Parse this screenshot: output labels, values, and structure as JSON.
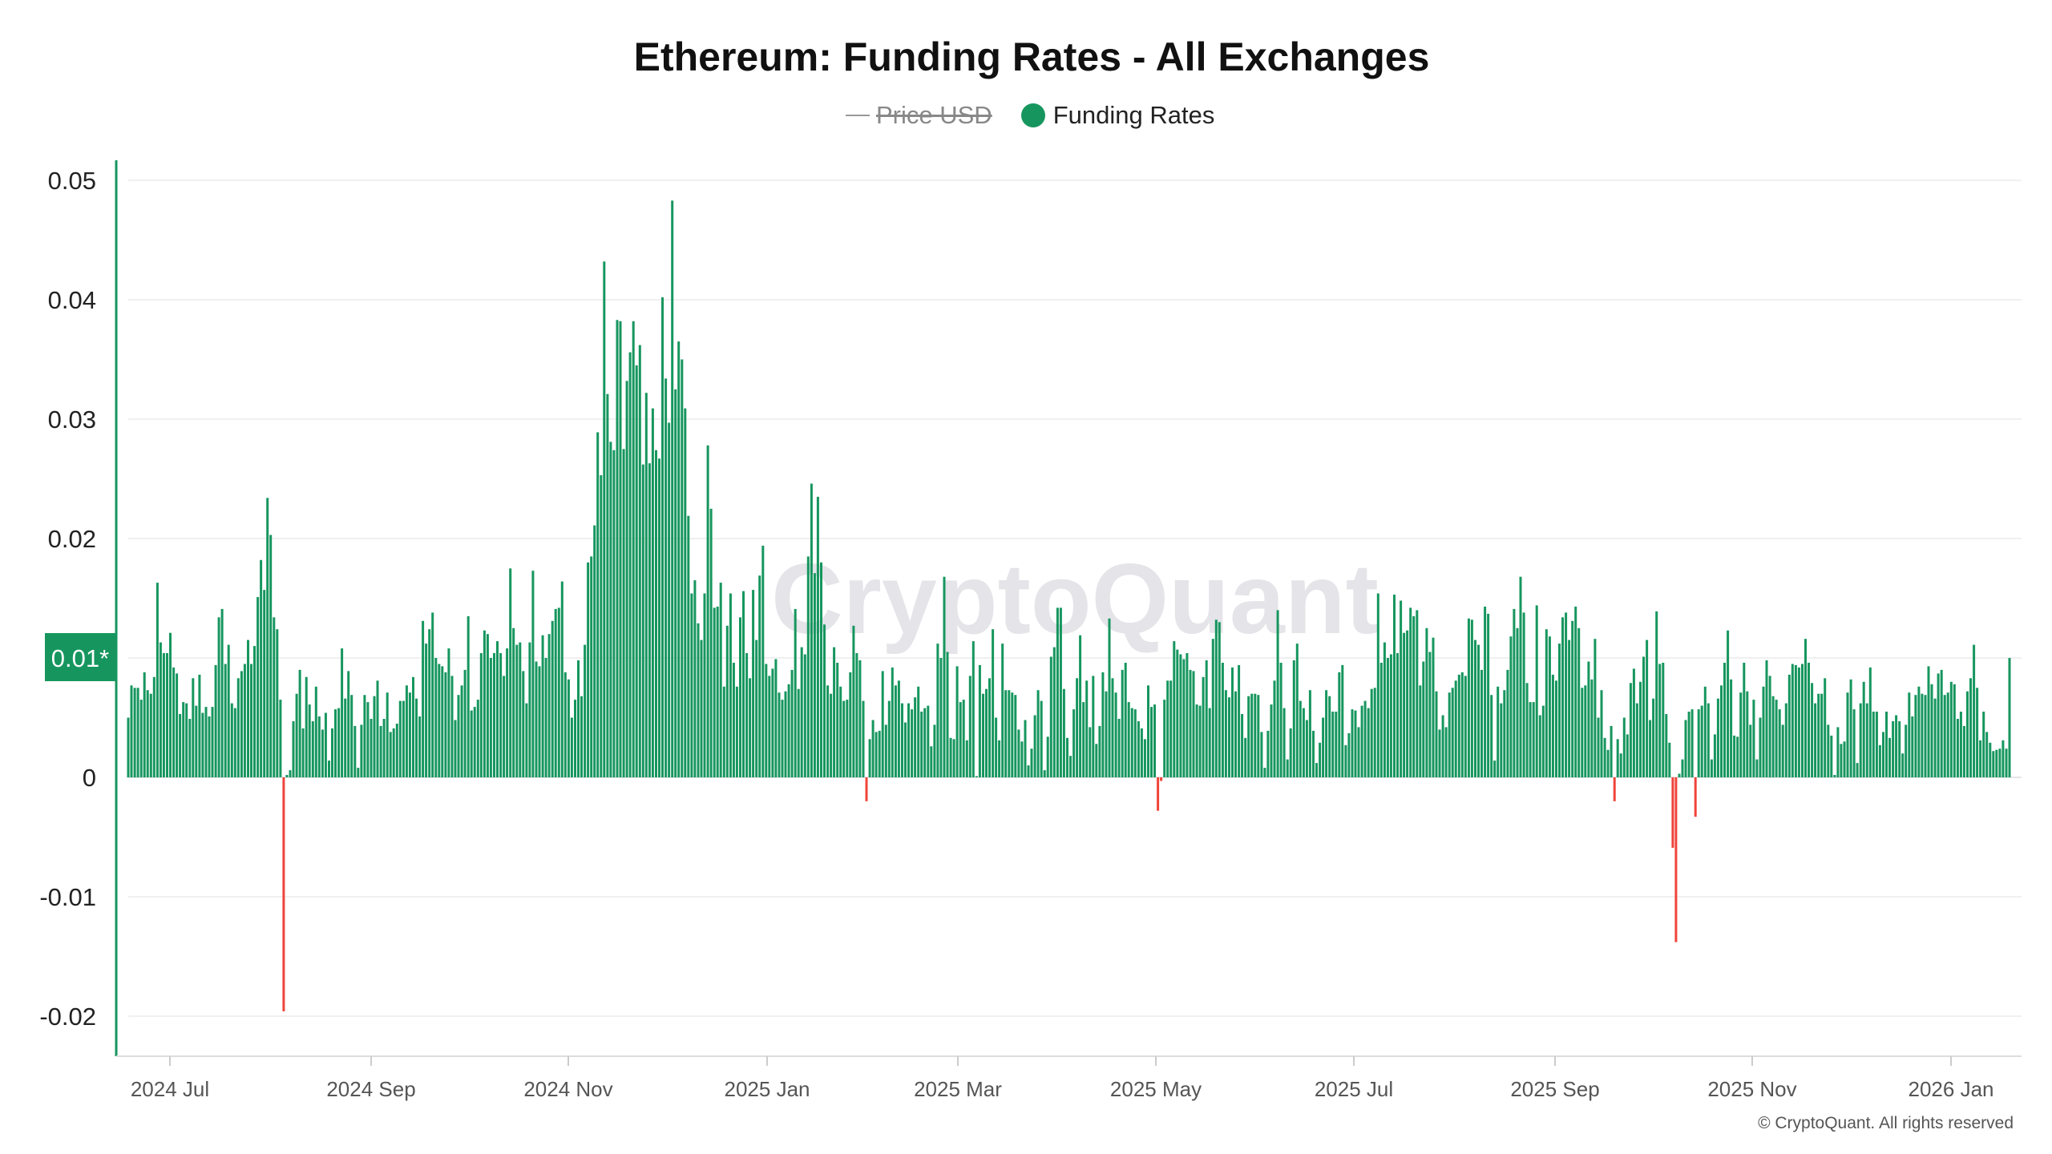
{
  "title": "Ethereum: Funding Rates - All Exchanges",
  "legend": {
    "price": "Price USD",
    "price_disabled": true,
    "funding": "Funding Rates"
  },
  "watermark": "CryptoQuant",
  "copyright": "© CryptoQuant. All rights reserved",
  "colors": {
    "positive": "#16965e",
    "negative": "#f0443a",
    "axis": "#16965e",
    "badge": "#16965e"
  },
  "chart_data": {
    "type": "bar",
    "title": "Ethereum: Funding Rates - All Exchanges",
    "series_name": "Funding Rates",
    "ylim": [
      -0.023,
      0.052
    ],
    "grid": true,
    "legend_position": "top-center",
    "y_ticks": [
      "0.05",
      "0.04",
      "0.03",
      "0.02",
      "0.01*",
      "0",
      "-0.01",
      "-0.02"
    ],
    "y_tick_values": [
      0.05,
      0.04,
      0.03,
      0.02,
      0.01,
      0,
      -0.01,
      -0.02
    ],
    "highlight_tick": "0.01*",
    "x_ticks": [
      "2024 Jul",
      "2024 Sep",
      "2024 Nov",
      "2025 Jan",
      "2025 Mar",
      "2025 May",
      "2025 Jul",
      "2025 Sep",
      "2025 Nov",
      "2026 Jan"
    ],
    "values": [
      0.005,
      0.0077,
      0.0075,
      0.0075,
      0.0065,
      0.0088,
      0.0073,
      0.007,
      0.0084,
      0.0163,
      0.0113,
      0.0104,
      0.0104,
      0.0121,
      0.0092,
      0.0087,
      0.0053,
      0.0063,
      0.0062,
      0.0049,
      0.0083,
      0.006,
      0.0086,
      0.0054,
      0.0059,
      0.0051,
      0.0059,
      0.0094,
      0.0134,
      0.0141,
      0.0095,
      0.0111,
      0.0062,
      0.0058,
      0.0083,
      0.0089,
      0.0095,
      0.0115,
      0.0095,
      0.011,
      0.0151,
      0.0182,
      0.0157,
      0.0234,
      0.0203,
      0.0134,
      0.0124,
      0.0065,
      -0.0196,
      0.0002,
      0.0006,
      0.0047,
      0.007,
      0.009,
      0.0041,
      0.0084,
      0.0061,
      0.0047,
      0.0076,
      0.0051,
      0.004,
      0.0054,
      0.0014,
      0.0041,
      0.0057,
      0.0058,
      0.0108,
      0.0066,
      0.0089,
      0.0069,
      0.0043,
      0.0008,
      0.0044,
      0.0069,
      0.0063,
      0.0049,
      0.0068,
      0.0081,
      0.0043,
      0.0049,
      0.0071,
      0.0038,
      0.0041,
      0.0045,
      0.0064,
      0.0064,
      0.0077,
      0.0071,
      0.0084,
      0.0066,
      0.0051,
      0.0131,
      0.0112,
      0.0124,
      0.0138,
      0.01,
      0.0095,
      0.0093,
      0.0088,
      0.0108,
      0.0085,
      0.0048,
      0.0069,
      0.0077,
      0.009,
      0.0135,
      0.0056,
      0.0059,
      0.0065,
      0.0104,
      0.0123,
      0.012,
      0.01,
      0.0104,
      0.0114,
      0.0104,
      0.0085,
      0.0108,
      0.0175,
      0.0125,
      0.0111,
      0.0113,
      0.0089,
      0.0062,
      0.0113,
      0.0173,
      0.0097,
      0.0093,
      0.0119,
      0.01,
      0.012,
      0.0131,
      0.0141,
      0.0142,
      0.0164,
      0.0088,
      0.0082,
      0.005,
      0.0065,
      0.0098,
      0.0068,
      0.0111,
      0.018,
      0.0185,
      0.0211,
      0.0289,
      0.0253,
      0.0432,
      0.0321,
      0.0281,
      0.0274,
      0.0383,
      0.0382,
      0.0275,
      0.0332,
      0.0356,
      0.0382,
      0.0345,
      0.0362,
      0.0262,
      0.0322,
      0.0263,
      0.0309,
      0.0274,
      0.0267,
      0.0402,
      0.0334,
      0.0297,
      0.0483,
      0.0325,
      0.0365,
      0.035,
      0.0309,
      0.0219,
      0.0154,
      0.0165,
      0.0129,
      0.0115,
      0.0154,
      0.0278,
      0.0225,
      0.0142,
      0.0143,
      0.0163,
      0.0076,
      0.0127,
      0.0154,
      0.0096,
      0.0076,
      0.0134,
      0.0156,
      0.0104,
      0.0083,
      0.0157,
      0.0115,
      0.0169,
      0.0194,
      0.0095,
      0.0085,
      0.0091,
      0.0099,
      0.0071,
      0.0065,
      0.0072,
      0.0078,
      0.009,
      0.0141,
      0.0074,
      0.0109,
      0.0103,
      0.0185,
      0.0246,
      0.0171,
      0.0235,
      0.018,
      0.0128,
      0.0077,
      0.007,
      0.0109,
      0.0096,
      0.0076,
      0.0064,
      0.0065,
      0.0088,
      0.0127,
      0.0104,
      0.0098,
      0.0064,
      -0.002,
      0.0032,
      0.0048,
      0.0038,
      0.0039,
      0.0089,
      0.0044,
      0.0064,
      0.0092,
      0.0077,
      0.0081,
      0.0062,
      0.0046,
      0.0062,
      0.0057,
      0.0067,
      0.0076,
      0.0055,
      0.0058,
      0.006,
      0.0026,
      0.0044,
      0.0112,
      0.01,
      0.0168,
      0.0105,
      0.0033,
      0.0032,
      0.0093,
      0.0063,
      0.0065,
      0.0031,
      0.0085,
      0.0114,
      0.0001,
      0.0094,
      0.007,
      0.0074,
      0.0083,
      0.0124,
      0.005,
      0.0031,
      0.0112,
      0.0073,
      0.0073,
      0.0071,
      0.0069,
      0.004,
      0.003,
      0.0048,
      0.001,
      0.0024,
      0.0052,
      0.0073,
      0.0064,
      0.0006,
      0.0034,
      0.0101,
      0.0109,
      0.0142,
      0.0142,
      0.0074,
      0.0033,
      0.0018,
      0.0057,
      0.0083,
      0.0119,
      0.0063,
      0.0081,
      0.0042,
      0.0085,
      0.0028,
      0.0043,
      0.0088,
      0.0072,
      0.0133,
      0.0083,
      0.0071,
      0.0049,
      0.009,
      0.0096,
      0.0063,
      0.0058,
      0.0057,
      0.0047,
      0.0041,
      0.0032,
      0.0077,
      0.0059,
      0.0061,
      -0.0028,
      -0.0003,
      0.0065,
      0.0081,
      0.0081,
      0.0114,
      0.0107,
      0.0103,
      0.0099,
      0.0104,
      0.009,
      0.0089,
      0.0061,
      0.006,
      0.0084,
      0.0098,
      0.0058,
      0.0116,
      0.0132,
      0.013,
      0.0096,
      0.0073,
      0.0067,
      0.0092,
      0.0072,
      0.0094,
      0.0053,
      0.0033,
      0.0068,
      0.007,
      0.007,
      0.0069,
      0.0038,
      0.0008,
      0.0039,
      0.0061,
      0.0081,
      0.014,
      0.0096,
      0.0058,
      0.0015,
      0.0041,
      0.0098,
      0.0112,
      0.0064,
      0.0058,
      0.0048,
      0.0073,
      0.0039,
      0.0012,
      0.0029,
      0.005,
      0.0073,
      0.0068,
      0.0055,
      0.0055,
      0.0088,
      0.0094,
      0.0027,
      0.0037,
      0.0057,
      0.0056,
      0.0042,
      0.006,
      0.0064,
      0.0058,
      0.0074,
      0.0075,
      0.0154,
      0.0096,
      0.0113,
      0.01,
      0.0103,
      0.0153,
      0.0104,
      0.0148,
      0.0121,
      0.0123,
      0.0142,
      0.0135,
      0.014,
      0.0077,
      0.0097,
      0.0125,
      0.0105,
      0.0117,
      0.0072,
      0.004,
      0.0052,
      0.0042,
      0.0071,
      0.0075,
      0.0081,
      0.0086,
      0.0088,
      0.0085,
      0.0133,
      0.0132,
      0.0115,
      0.0111,
      0.009,
      0.0143,
      0.0137,
      0.0069,
      0.0014,
      0.0076,
      0.0062,
      0.0073,
      0.009,
      0.0118,
      0.0141,
      0.0125,
      0.0168,
      0.0138,
      0.0079,
      0.0063,
      0.0063,
      0.0144,
      0.0052,
      0.006,
      0.0124,
      0.0118,
      0.0086,
      0.0081,
      0.0112,
      0.0134,
      0.0138,
      0.0115,
      0.0131,
      0.0143,
      0.0125,
      0.0075,
      0.0077,
      0.0097,
      0.0082,
      0.0116,
      0.005,
      0.0073,
      0.0033,
      0.0023,
      0.0043,
      -0.002,
      0.0032,
      0.002,
      0.005,
      0.0036,
      0.0079,
      0.0091,
      0.0062,
      0.008,
      0.0101,
      0.0115,
      0.0048,
      0.0066,
      0.0139,
      0.0095,
      0.0096,
      0.0053,
      0.0029,
      -0.0059,
      -0.0138,
      0.0003,
      0.0015,
      0.0048,
      0.0055,
      0.0057,
      -0.0033,
      0.0057,
      0.006,
      0.0076,
      0.0062,
      0.0015,
      0.0036,
      0.0066,
      0.0077,
      0.0096,
      0.0123,
      0.0082,
      0.0035,
      0.0034,
      0.0071,
      0.0096,
      0.0072,
      0.0044,
      0.0065,
      0.0015,
      0.005,
      0.0076,
      0.0098,
      0.0085,
      0.0068,
      0.0065,
      0.0057,
      0.0044,
      0.0062,
      0.0086,
      0.0095,
      0.0094,
      0.0092,
      0.0095,
      0.0116,
      0.0096,
      0.0079,
      0.0062,
      0.007,
      0.007,
      0.0083,
      0.0044,
      0.0035,
      0.0002,
      0.0042,
      0.0028,
      0.003,
      0.0071,
      0.0082,
      0.0057,
      0.0012,
      0.0062,
      0.008,
      0.0062,
      0.0092,
      0.0055,
      0.0055,
      0.0027,
      0.0038,
      0.0055,
      0.0033,
      0.0047,
      0.0052,
      0.0047,
      0.002,
      0.0044,
      0.0071,
      0.0051,
      0.0069,
      0.0076,
      0.007,
      0.0069,
      0.0093,
      0.0078,
      0.0066,
      0.0087,
      0.009,
      0.0069,
      0.0071,
      0.008,
      0.0078,
      0.0049,
      0.0055,
      0.0043,
      0.0072,
      0.0083,
      0.0111,
      0.0075,
      0.0031,
      0.0055,
      0.0038,
      0.0029,
      0.0022,
      0.0023,
      0.0024,
      0.0031,
      0.0024,
      0.01
    ]
  }
}
